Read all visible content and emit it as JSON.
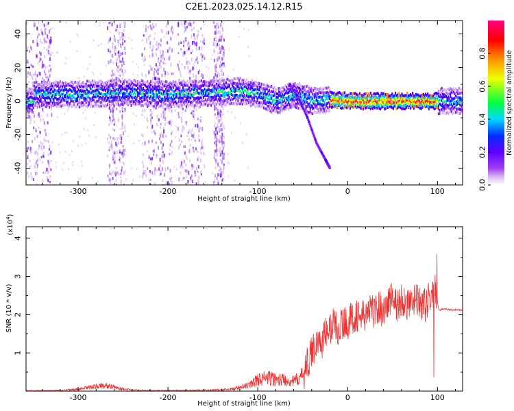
{
  "title": "C2E1.2023.025.14.12.R15",
  "chart_data": [
    {
      "type": "heatmap",
      "xlabel": "Height of straight line (km)",
      "ylabel": "Frequency (Hz)",
      "xlim": [
        -358,
        128
      ],
      "ylim": [
        -50,
        48
      ],
      "xticks": [
        -300,
        -200,
        -100,
        0,
        100
      ],
      "xtick_labels": [
        "-300",
        "-200",
        "-100",
        "0",
        "100"
      ],
      "yticks": [
        -40,
        -20,
        0,
        20,
        40
      ],
      "ytick_labels": [
        "-40",
        "-20",
        "0",
        "20",
        "40"
      ],
      "colorbar": {
        "label": "Normalized spectral amplitude",
        "range": [
          0,
          1
        ],
        "ticks": [
          0.0,
          0.2,
          0.4,
          0.6,
          0.8
        ],
        "tick_labels": [
          "0.0",
          "0.2",
          "0.4",
          "0.6",
          "0.8"
        ],
        "colormap": [
          "#ffffff",
          "#d8b8f0",
          "#a040f0",
          "#6000ff",
          "#0030ff",
          "#00d8ff",
          "#00ff40",
          "#f0ff00",
          "#ff8000",
          "#ff0000",
          "#ff0080"
        ]
      },
      "ridge": [
        {
          "x": -350,
          "f": 4
        },
        {
          "x": -300,
          "f": 4
        },
        {
          "x": -250,
          "f": 5
        },
        {
          "x": -200,
          "f": 4
        },
        {
          "x": -150,
          "f": 5
        },
        {
          "x": -120,
          "f": 6
        },
        {
          "x": -100,
          "f": 4
        },
        {
          "x": -80,
          "f": 0
        },
        {
          "x": -60,
          "f": 4
        },
        {
          "x": -40,
          "f": 0
        },
        {
          "x": -20,
          "f": 1
        },
        {
          "x": 0,
          "f": 0
        },
        {
          "x": 50,
          "f": 0
        },
        {
          "x": 100,
          "f": 0
        },
        {
          "x": 128,
          "f": 0
        }
      ],
      "branch": [
        {
          "x": -65,
          "f": 10
        },
        {
          "x": -55,
          "f": 2
        },
        {
          "x": -45,
          "f": -10
        },
        {
          "x": -35,
          "f": -25
        },
        {
          "x": -25,
          "f": -35
        },
        {
          "x": -20,
          "f": -40
        }
      ]
    },
    {
      "type": "line",
      "xlabel": "Height of straight line (km)",
      "ylabel": "SNR (10 * v/v)",
      "multiplier": "(x10",
      "multiplier_exp": "4",
      "multiplier_close": ")",
      "xlim": [
        -358,
        128
      ],
      "ylim": [
        0,
        4.3
      ],
      "xticks": [
        -300,
        -200,
        -100,
        0,
        100
      ],
      "xtick_labels": [
        "-300",
        "-200",
        "-100",
        "0",
        "100"
      ],
      "yticks": [
        1,
        2,
        3,
        4
      ],
      "ytick_labels": [
        "1",
        "2",
        "3",
        "4"
      ],
      "color": "#ee3333",
      "series": [
        {
          "x": [
            -358,
            -320,
            -300,
            -280,
            -270,
            -260,
            -250,
            -240,
            -220,
            -200,
            -180,
            -150,
            -130,
            -110,
            -100,
            -90,
            -80,
            -70,
            -60,
            -50,
            -45,
            -40,
            -35,
            -30,
            -25,
            -20,
            -15,
            -10,
            -5,
            0,
            5,
            10,
            15,
            20,
            25,
            30,
            35,
            40,
            45,
            50,
            55,
            60,
            65,
            70,
            75,
            80,
            85,
            90,
            95,
            98,
            100,
            102,
            105,
            110,
            115,
            120,
            128
          ],
          "y": [
            0.01,
            0.02,
            0.05,
            0.12,
            0.15,
            0.1,
            0.06,
            0.03,
            0.02,
            0.02,
            0.02,
            0.03,
            0.05,
            0.15,
            0.3,
            0.35,
            0.3,
            0.3,
            0.25,
            0.4,
            0.7,
            1.0,
            1.3,
            1.2,
            1.5,
            1.6,
            1.8,
            1.6,
            1.8,
            1.8,
            1.9,
            2.0,
            1.9,
            2.0,
            2.1,
            2.1,
            2.2,
            2.1,
            2.3,
            2.5,
            2.2,
            2.4,
            2.3,
            2.2,
            2.4,
            2.3,
            2.2,
            2.4,
            2.5,
            2.6,
            2.3,
            2.1,
            2.15,
            2.15,
            2.12,
            2.13,
            2.12
          ]
        }
      ]
    }
  ]
}
